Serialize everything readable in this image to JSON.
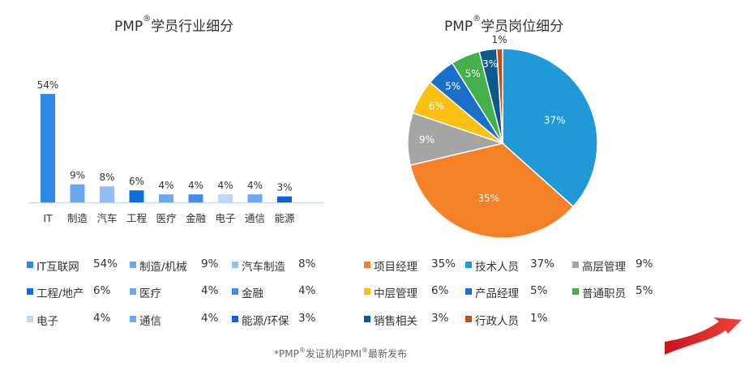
{
  "footnote": {
    "pre": "*PMP",
    "reg": "®",
    "mid": "发证机构PMI",
    "reg2": "®",
    "post": "最新发布"
  },
  "chart_data": [
    {
      "type": "bar",
      "title": {
        "pre": "PMP",
        "reg": "®",
        "post": "学员行业细分"
      },
      "categories": [
        "IT",
        "制造",
        "汽车",
        "工程",
        "医疗",
        "金融",
        "电子",
        "通信",
        "能源"
      ],
      "values": [
        54,
        9,
        8,
        6,
        4,
        4,
        4,
        4,
        3
      ],
      "value_labels": [
        "54%",
        "9%",
        "8%",
        "6%",
        "4%",
        "4%",
        "4%",
        "4%",
        "3%"
      ],
      "colors": [
        "#2e8ae6",
        "#6aa8f0",
        "#92bdf5",
        "#0a6fe0",
        "#6aa8f0",
        "#3d8fe8",
        "#bcd8fa",
        "#6aa8f0",
        "#0a62dc"
      ],
      "legend": [
        {
          "label": "IT互联网",
          "value": "54%"
        },
        {
          "label": "制造/机械",
          "value": "9%"
        },
        {
          "label": "汽车制造",
          "value": "8%"
        },
        {
          "label": "工程/地产",
          "value": "6%"
        },
        {
          "label": "医疗",
          "value": "4%"
        },
        {
          "label": "金融",
          "value": "4%"
        },
        {
          "label": "电子",
          "value": "4%"
        },
        {
          "label": "通信",
          "value": "4%"
        },
        {
          "label": "能源/环保",
          "value": "3%"
        }
      ]
    },
    {
      "type": "pie",
      "title": {
        "pre": "PMP",
        "reg": "®",
        "post": "学员岗位细分"
      },
      "slices": [
        {
          "label": "技术人员",
          "value": 37,
          "text": "37%",
          "color": "#1f9ad6"
        },
        {
          "label": "项目经理",
          "value": 35,
          "text": "35%",
          "color": "#f58025"
        },
        {
          "label": "高层管理",
          "value": 9,
          "text": "9%",
          "color": "#a5a5a5"
        },
        {
          "label": "中层管理",
          "value": 6,
          "text": "6%",
          "color": "#fdc010"
        },
        {
          "label": "产品经理",
          "value": 5,
          "text": "5%",
          "color": "#1a6fc9"
        },
        {
          "label": "普通职员",
          "value": 5,
          "text": "5%",
          "color": "#44b04a"
        },
        {
          "label": "销售相关",
          "value": 3,
          "text": "3%",
          "color": "#0c5a8c"
        },
        {
          "label": "行政人员",
          "value": 1,
          "text": "1%",
          "color": "#c0501a"
        }
      ],
      "legend_order": [
        1,
        0,
        2,
        3,
        4,
        5,
        6,
        7
      ]
    }
  ]
}
